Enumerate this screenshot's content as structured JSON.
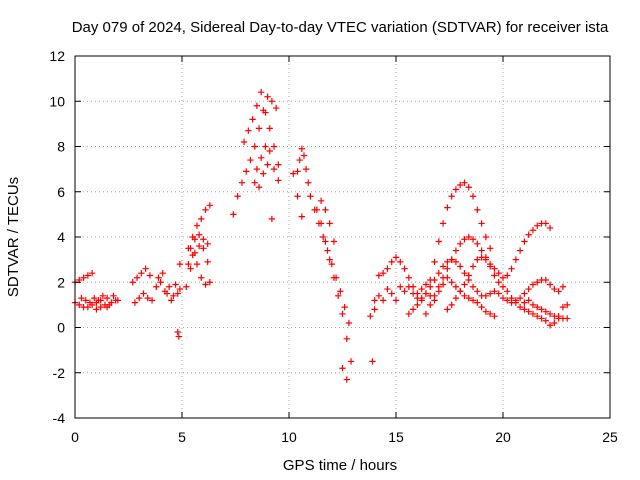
{
  "chart_data": {
    "type": "scatter",
    "title": "Day 079 of 2024, Sidereal Day-to-day VTEC variation (SDTVAR) for receiver ista",
    "xlabel": "GPS time / hours",
    "ylabel": "SDTVAR / TECUs",
    "xlim": [
      0,
      25
    ],
    "ylim": [
      -4,
      12
    ],
    "xticks": [
      "0",
      "5",
      "10",
      "15",
      "20",
      "25"
    ],
    "yticks": [
      "-4",
      "-2",
      "0",
      "2",
      "4",
      "6",
      "8",
      "10",
      "12"
    ],
    "grid": true,
    "marker": "+",
    "series": [
      {
        "name": "SDTVAR",
        "color": "#ff0000",
        "x": [
          0.0,
          0.2,
          0.4,
          0.6,
          0.8,
          1.0,
          1.2,
          0.0,
          0.2,
          0.4,
          0.6,
          0.8,
          1.0,
          1.2,
          1.4,
          0.3,
          0.5,
          0.7,
          0.9,
          1.1,
          1.3,
          1.5,
          1.6,
          1.8,
          2.0,
          1.5,
          1.7,
          1.9,
          2.7,
          2.9,
          3.1,
          3.3,
          3.5,
          2.8,
          3.0,
          3.2,
          3.4,
          3.6,
          3.8,
          4.0,
          4.2,
          4.4,
          4.6,
          4.8,
          3.9,
          4.1,
          4.3,
          4.5,
          4.7,
          4.9,
          4.8,
          4.85,
          4.9,
          5.3,
          5.5,
          5.7,
          5.9,
          6.1,
          6.3,
          5.3,
          5.5,
          5.7,
          5.9,
          6.1,
          6.3,
          5.2,
          5.4,
          5.6,
          5.8,
          6.0,
          6.2,
          5.4,
          5.6,
          5.8,
          6.0,
          6.2,
          7.4,
          7.6,
          7.8,
          8.0,
          8.2,
          8.4,
          8.6,
          8.8,
          9.0,
          9.2,
          9.4,
          7.9,
          8.1,
          8.3,
          8.5,
          8.7,
          8.9,
          9.1,
          9.3,
          9.5,
          8.5,
          8.7,
          8.9,
          9.1,
          9.3,
          9.5,
          8.4,
          8.6,
          8.8,
          9.0,
          9.2,
          10.4,
          10.5,
          10.6,
          10.7,
          10.8,
          10.9,
          11.0,
          11.2,
          11.4,
          11.6,
          11.8,
          12.0,
          12.2,
          12.4,
          12.6,
          12.8,
          11.3,
          11.5,
          11.7,
          11.9,
          12.1,
          12.3,
          12.5,
          12.7,
          12.9,
          10.2,
          10.4,
          10.6,
          11.5,
          11.7,
          11.9,
          12.1,
          12.5,
          12.7,
          13.8,
          13.9,
          14.0,
          14.2,
          14.4,
          14.6,
          14.8,
          15.0,
          14.0,
          14.2,
          14.4,
          14.6,
          14.8,
          15.0,
          15.2,
          15.2,
          15.4,
          15.6,
          15.8,
          16.0,
          16.2,
          16.4,
          16.6,
          16.8,
          17.0,
          17.2,
          17.4,
          17.6,
          17.8,
          18.0,
          18.2,
          18.4,
          18.6,
          18.8,
          19.0,
          19.2,
          19.4,
          16.4,
          16.6,
          16.8,
          17.0,
          17.2,
          17.4,
          17.6,
          17.8,
          18.0,
          18.2,
          18.4,
          18.6,
          18.8,
          19.0,
          19.2,
          19.4,
          19.6,
          19.8,
          20.0,
          20.2,
          20.4,
          20.6,
          20.8,
          21.0,
          21.2,
          21.4,
          21.6,
          21.8,
          22.0,
          22.2,
          15.6,
          15.8,
          16.0,
          16.2,
          16.4,
          16.6,
          16.8,
          17.0,
          17.2,
          17.4,
          17.6,
          17.8,
          18.0,
          18.2,
          18.4,
          18.6,
          18.8,
          19.0,
          19.2,
          19.4,
          19.6,
          19.8,
          20.0,
          20.2,
          20.4,
          20.6,
          20.8,
          21.0,
          21.2,
          21.4,
          21.6,
          21.8,
          22.0,
          22.2,
          22.4,
          22.6,
          22.8,
          17.4,
          17.6,
          17.8,
          18.0,
          18.2,
          18.4,
          18.6,
          18.8,
          19.0,
          19.2,
          19.4,
          19.6,
          19.8,
          20.0,
          20.2,
          20.4,
          20.6,
          20.8,
          21.0,
          21.2,
          21.4,
          21.6,
          21.8,
          22.0,
          22.2,
          22.4,
          22.6,
          22.8,
          23.0,
          15.4,
          15.6,
          15.8,
          16.0,
          16.2,
          16.4,
          16.6,
          16.8,
          17.0,
          17.2,
          17.4,
          17.6,
          17.8,
          18.0,
          18.2,
          18.4,
          18.6,
          18.8,
          19.0,
          19.2,
          19.4,
          19.6,
          21.0,
          21.2,
          21.4,
          21.6,
          21.8,
          22.0,
          22.2,
          22.4,
          22.6,
          22.8,
          23.0
        ],
        "y": [
          2.0,
          2.1,
          2.2,
          2.3,
          2.4,
          1.1,
          0.9,
          1.1,
          1.0,
          0.9,
          0.9,
          1.0,
          0.8,
          1.2,
          1.0,
          1.3,
          1.2,
          1.1,
          1.3,
          1.2,
          1.4,
          1.3,
          1.0,
          1.4,
          1.2,
          0.9,
          1.1,
          1.2,
          2.0,
          2.2,
          2.4,
          2.6,
          2.3,
          1.1,
          1.3,
          1.5,
          1.3,
          1.2,
          1.8,
          2.0,
          1.6,
          1.8,
          1.4,
          1.5,
          2.2,
          2.4,
          1.5,
          1.2,
          1.9,
          1.7,
          -0.2,
          -0.4,
          2.8,
          3.5,
          4.0,
          4.5,
          4.8,
          5.2,
          5.4,
          2.8,
          3.2,
          2.8,
          2.2,
          1.9,
          2.0,
          1.8,
          2.6,
          3.3,
          3.6,
          3.9,
          3.7,
          3.5,
          3.9,
          4.1,
          3.5,
          2.9,
          5.0,
          5.8,
          6.4,
          6.9,
          7.4,
          8.0,
          8.8,
          9.6,
          10.2,
          10.0,
          9.7,
          8.2,
          8.7,
          9.2,
          9.8,
          10.4,
          9.5,
          8.8,
          8.0,
          7.2,
          7.0,
          7.5,
          8.0,
          7.8,
          7.0,
          6.5,
          6.4,
          6.2,
          6.8,
          7.2,
          4.8,
          6.9,
          7.4,
          7.9,
          7.6,
          7.0,
          6.4,
          5.8,
          5.2,
          4.6,
          4.0,
          3.4,
          2.8,
          2.2,
          1.6,
          0.9,
          0.2,
          5.2,
          4.6,
          3.8,
          3.0,
          2.2,
          1.4,
          0.6,
          -0.5,
          -1.5,
          6.8,
          5.8,
          4.9,
          5.6,
          5.2,
          4.6,
          3.8,
          -1.8,
          -2.3,
          0.5,
          -1.5,
          1.2,
          2.3,
          2.4,
          2.6,
          2.9,
          3.1,
          0.8,
          1.4,
          1.2,
          1.7,
          1.5,
          1.2,
          1.8,
          2.9,
          2.6,
          2.2,
          1.8,
          1.5,
          1.3,
          1.5,
          2.1,
          2.9,
          3.8,
          4.6,
          5.3,
          5.8,
          6.1,
          6.3,
          6.4,
          6.2,
          5.8,
          5.2,
          4.6,
          4.0,
          3.5,
          0.6,
          1.0,
          1.4,
          1.8,
          2.2,
          2.6,
          3.0,
          3.4,
          3.7,
          3.9,
          4.0,
          3.9,
          3.7,
          3.4,
          3.1,
          2.8,
          2.6,
          2.4,
          2.2,
          2.3,
          2.6,
          3.0,
          3.4,
          3.8,
          4.1,
          4.3,
          4.5,
          4.6,
          4.6,
          4.4,
          0.6,
          0.8,
          1.0,
          1.2,
          1.5,
          1.8,
          2.1,
          2.4,
          2.7,
          2.9,
          3.0,
          2.9,
          2.7,
          2.4,
          2.1,
          1.8,
          1.6,
          1.4,
          1.4,
          1.5,
          1.6,
          1.5,
          1.3,
          1.2,
          1.1,
          1.2,
          1.3,
          1.5,
          1.7,
          1.9,
          2.0,
          2.1,
          2.1,
          1.9,
          1.7,
          1.6,
          1.8,
          0.8,
          1.0,
          1.3,
          1.6,
          1.9,
          2.3,
          2.7,
          3.0,
          3.1,
          3.0,
          2.7,
          2.3,
          2.0,
          1.8,
          1.6,
          1.3,
          1.1,
          0.9,
          0.8,
          0.7,
          0.6,
          0.5,
          0.4,
          0.3,
          0.1,
          0.2,
          0.5,
          0.9,
          1.0,
          1.6,
          1.8,
          1.5,
          1.3,
          1.7,
          1.9,
          1.4,
          1.2,
          1.6,
          1.9,
          2.2,
          2.0,
          1.8,
          1.6,
          1.4,
          1.3,
          1.2,
          1.1,
          0.9,
          0.7,
          0.6,
          0.5,
          1.1,
          1.2,
          1.0,
          0.9,
          0.8,
          0.7,
          0.6,
          0.5,
          0.4,
          0.4,
          0.4
        ]
      }
    ]
  }
}
